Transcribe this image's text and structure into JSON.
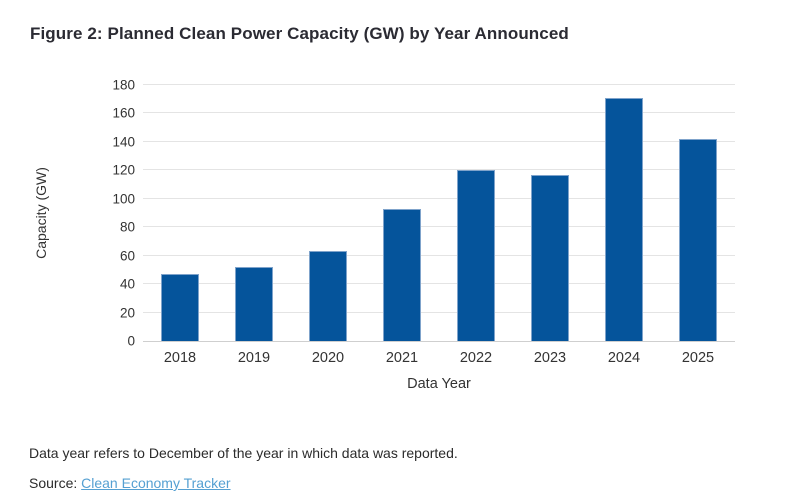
{
  "title": "Figure 2: Planned Clean Power Capacity (GW) by Year Announced",
  "chart_data": {
    "type": "bar",
    "categories": [
      "2018",
      "2019",
      "2020",
      "2021",
      "2022",
      "2023",
      "2024",
      "2025"
    ],
    "values": [
      47,
      52,
      63,
      93,
      120,
      117,
      171,
      142
    ],
    "title": "Figure 2: Planned Clean Power Capacity (GW) by Year Announced",
    "xlabel": "Data Year",
    "ylabel": "Capacity (GW)",
    "ylim": [
      0,
      180
    ],
    "ytick_step": 20,
    "grid": true,
    "legend": false,
    "colors": {
      "bar_fill": "#05549b",
      "bar_edge": "#7fa3cb",
      "gridline": "#e4e4e4",
      "axis_line": "#cfcfcf",
      "text": "#333333"
    }
  },
  "footnote": "Data year refers to December of the year in which data was reported.",
  "source": {
    "label": "Source: ",
    "link_text": "Clean Economy Tracker",
    "link_color": "#55a0d2"
  }
}
